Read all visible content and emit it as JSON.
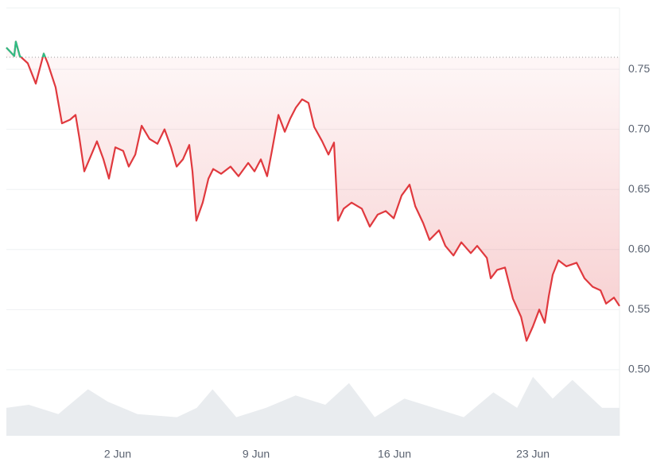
{
  "chart_data": {
    "type": "line",
    "x": [
      -3.63,
      -3.23,
      -3.15,
      -2.95,
      -2.55,
      -2.14,
      -1.74,
      -1.54,
      -1.14,
      -0.82,
      -0.41,
      -0.13,
      0.07,
      0.31,
      0.67,
      0.95,
      1.28,
      1.56,
      1.88,
      2.28,
      2.56,
      2.89,
      3.21,
      3.61,
      4.01,
      4.37,
      4.7,
      4.98,
      5.3,
      5.62,
      5.78,
      5.98,
      6.3,
      6.59,
      6.83,
      7.23,
      7.71,
      8.11,
      8.6,
      8.92,
      9.24,
      9.56,
      9.8,
      10.13,
      10.45,
      10.73,
      11.01,
      11.33,
      11.65,
      11.94,
      12.34,
      12.66,
      12.94,
      13.14,
      13.43,
      13.83,
      14.35,
      14.75,
      15.15,
      15.56,
      15.96,
      16.36,
      16.76,
      17.05,
      17.45,
      17.77,
      18.25,
      18.57,
      18.98,
      19.38,
      19.86,
      20.18,
      20.67,
      20.87,
      21.19,
      21.59,
      21.99,
      22.4,
      22.68,
      23.0,
      23.32,
      23.6,
      23.8,
      24.0,
      24.29,
      24.69,
      25.21,
      25.61,
      26.02,
      26.42,
      26.7,
      27.1,
      27.38
    ],
    "series": [
      {
        "color": "#e0393e",
        "color_above": "#2fbd85",
        "values": [
          0.768,
          0.761,
          0.773,
          0.761,
          0.755,
          0.738,
          0.763,
          0.755,
          0.735,
          0.705,
          0.708,
          0.712,
          0.692,
          0.665,
          0.679,
          0.69,
          0.675,
          0.659,
          0.685,
          0.682,
          0.669,
          0.679,
          0.703,
          0.692,
          0.688,
          0.7,
          0.685,
          0.669,
          0.675,
          0.687,
          0.665,
          0.624,
          0.639,
          0.659,
          0.667,
          0.663,
          0.669,
          0.661,
          0.672,
          0.665,
          0.675,
          0.661,
          0.682,
          0.712,
          0.698,
          0.709,
          0.718,
          0.725,
          0.722,
          0.702,
          0.69,
          0.679,
          0.689,
          0.624,
          0.634,
          0.639,
          0.634,
          0.619,
          0.629,
          0.632,
          0.626,
          0.645,
          0.654,
          0.636,
          0.622,
          0.608,
          0.616,
          0.603,
          0.595,
          0.606,
          0.597,
          0.603,
          0.593,
          0.576,
          0.583,
          0.585,
          0.559,
          0.544,
          0.524,
          0.536,
          0.55,
          0.539,
          0.561,
          0.579,
          0.591,
          0.586,
          0.589,
          0.576,
          0.569,
          0.566,
          0.555,
          0.56,
          0.553
        ]
      }
    ],
    "baseline": 0.76,
    "volume": {
      "color": "#e9ecef",
      "x": [
        -3.63,
        -2.5,
        -1.0,
        0.5,
        1.5,
        3.0,
        5.0,
        6.0,
        6.8,
        8.0,
        9.5,
        11.0,
        12.5,
        13.7,
        15.0,
        16.5,
        18.0,
        19.5,
        21.0,
        22.2,
        23.0,
        24.0,
        25.0,
        26.5,
        27.38
      ],
      "values": [
        0.45,
        0.5,
        0.35,
        0.75,
        0.55,
        0.35,
        0.3,
        0.45,
        0.75,
        0.3,
        0.45,
        0.65,
        0.5,
        0.85,
        0.3,
        0.6,
        0.45,
        0.3,
        0.7,
        0.45,
        0.95,
        0.6,
        0.9,
        0.45,
        0.45
      ]
    },
    "y2lim": [
      0,
      1
    ],
    "xlim": [
      -3.63,
      27.38
    ],
    "xticks": [
      {
        "value": 2,
        "label": "2 Jun"
      },
      {
        "value": 9,
        "label": "9 Jun"
      },
      {
        "value": 16,
        "label": "16 Jun"
      },
      {
        "value": 23,
        "label": "23 Jun"
      }
    ],
    "ylim": [
      0.445,
      0.801
    ],
    "yticks": [
      {
        "value": 0.5,
        "label": "0.50"
      },
      {
        "value": 0.55,
        "label": "0.55"
      },
      {
        "value": 0.6,
        "label": "0.60"
      },
      {
        "value": 0.65,
        "label": "0.65"
      },
      {
        "value": 0.7,
        "label": "0.70"
      },
      {
        "value": 0.75,
        "label": "0.75"
      }
    ],
    "grid": true
  }
}
